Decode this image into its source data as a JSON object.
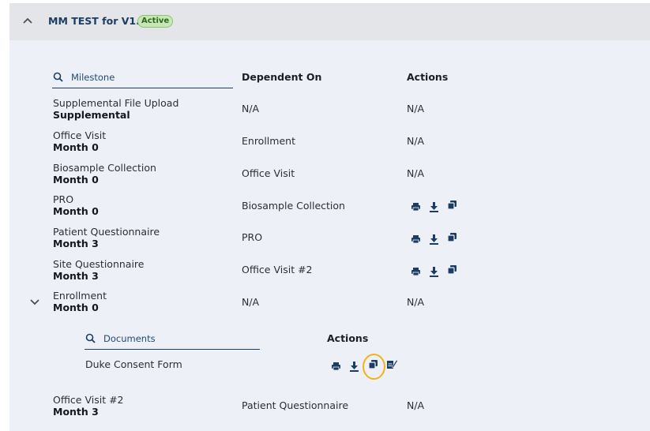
{
  "header": {
    "title": "MM TEST for V1.3",
    "status": "Active"
  },
  "milestones_table": {
    "search_placeholder": "Milestone",
    "col_dependent": "Dependent On",
    "col_actions": "Actions",
    "rows": [
      {
        "title": "Supplemental File Upload",
        "sub": "Supplemental",
        "dependent": "N/A",
        "actions": "N/A"
      },
      {
        "title": "Office Visit",
        "sub": "Month 0",
        "dependent": "Enrollment",
        "actions": "N/A"
      },
      {
        "title": "Biosample Collection",
        "sub": "Month 0",
        "dependent": "Office Visit",
        "actions": "N/A"
      },
      {
        "title": "PRO",
        "sub": "Month 0",
        "dependent": "Biosample Collection"
      },
      {
        "title": "Patient Questionnaire",
        "sub": "Month 3",
        "dependent": "PRO"
      },
      {
        "title": "Site Questionnaire",
        "sub": "Month 3",
        "dependent": "Office Visit #2"
      },
      {
        "title": "Enrollment",
        "sub": "Month 0",
        "dependent": "N/A",
        "actions": "N/A"
      },
      {
        "title": "Office Visit #2",
        "sub": "Month 3",
        "dependent": "Patient Questionnaire",
        "actions": "N/A"
      }
    ]
  },
  "documents_table": {
    "search_placeholder": "Documents",
    "col_actions": "Actions",
    "rows": [
      {
        "name": "Duke Consent Form"
      }
    ]
  },
  "icons": {
    "print": "print-icon",
    "download": "download-icon",
    "copy": "copy-icon",
    "edit": "edit-document-icon"
  },
  "colors": {
    "header_title": "#1c3d63",
    "badge_bg": "#c9e6b8",
    "panel_bg": "#eef0f7",
    "icon": "#1c3d63",
    "highlight": "#f2b21c"
  }
}
